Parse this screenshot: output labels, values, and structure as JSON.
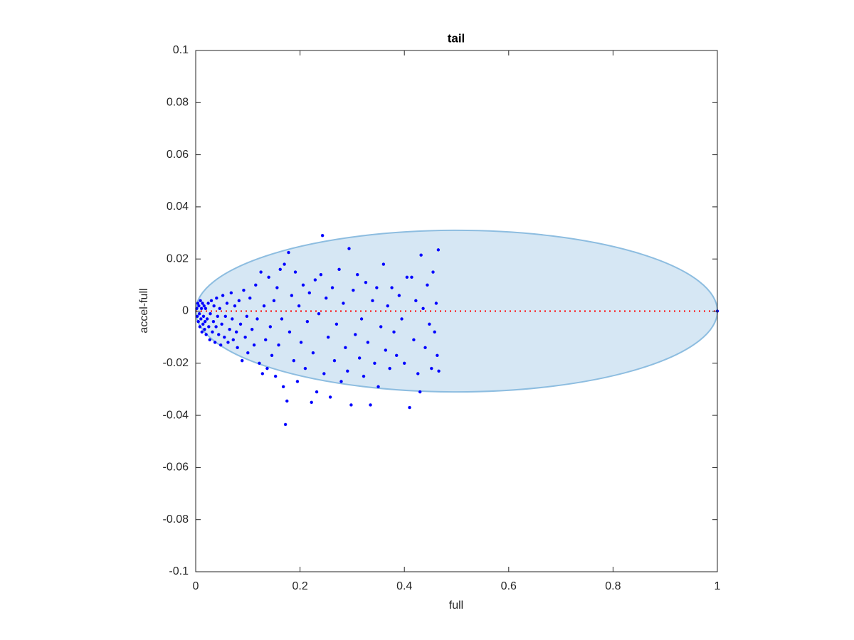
{
  "chart_data": {
    "type": "scatter",
    "title": "tail",
    "x_label": "full",
    "y_label": "accel-full",
    "xlim": [
      0,
      1
    ],
    "ylim": [
      -0.1,
      0.1
    ],
    "xticks": [
      0,
      0.2,
      0.4,
      0.6,
      0.8,
      1
    ],
    "yticks": [
      -0.1,
      -0.08,
      -0.06,
      -0.04,
      -0.02,
      0,
      0.02,
      0.04,
      0.06,
      0.08,
      0.1
    ],
    "grid": false,
    "color": "#0000ff",
    "ellipse": {
      "cx": 0.5,
      "cy": 0,
      "rx": 0.5,
      "ry": 0.031,
      "facecolor": "#d6e7f4",
      "edgecolor": "#8dbde0"
    },
    "reference_line": {
      "y": 0,
      "color": "#ff0000"
    },
    "x": [
      0.002,
      0.003,
      0.004,
      0.005,
      0.006,
      0.007,
      0.008,
      0.009,
      0.01,
      0.011,
      0.012,
      0.013,
      0.014,
      0.015,
      0.016,
      0.017,
      0.018,
      0.019,
      0.02,
      0.022,
      0.024,
      0.025,
      0.027,
      0.028,
      0.03,
      0.032,
      0.034,
      0.035,
      0.037,
      0.039,
      0.04,
      0.042,
      0.044,
      0.046,
      0.048,
      0.05,
      0.052,
      0.055,
      0.057,
      0.06,
      0.062,
      0.065,
      0.068,
      0.07,
      0.072,
      0.075,
      0.078,
      0.08,
      0.083,
      0.086,
      0.089,
      0.092,
      0.095,
      0.098,
      0.1,
      0.104,
      0.108,
      0.112,
      0.115,
      0.118,
      0.122,
      0.125,
      0.128,
      0.131,
      0.134,
      0.137,
      0.14,
      0.143,
      0.146,
      0.15,
      0.153,
      0.156,
      0.159,
      0.162,
      0.165,
      0.168,
      0.17,
      0.172,
      0.175,
      0.178,
      0.18,
      0.184,
      0.188,
      0.191,
      0.195,
      0.198,
      0.202,
      0.206,
      0.21,
      0.214,
      0.218,
      0.222,
      0.225,
      0.229,
      0.232,
      0.236,
      0.24,
      0.243,
      0.246,
      0.25,
      0.254,
      0.258,
      0.262,
      0.266,
      0.27,
      0.275,
      0.279,
      0.283,
      0.287,
      0.291,
      0.294,
      0.298,
      0.302,
      0.306,
      0.31,
      0.314,
      0.318,
      0.322,
      0.326,
      0.33,
      0.335,
      0.339,
      0.343,
      0.347,
      0.35,
      0.355,
      0.36,
      0.364,
      0.368,
      0.372,
      0.376,
      0.38,
      0.385,
      0.39,
      0.395,
      0.4,
      0.405,
      0.41,
      0.414,
      0.418,
      0.422,
      0.426,
      0.43,
      0.432,
      0.436,
      0.44,
      0.444,
      0.448,
      0.452,
      0.455,
      0.458,
      0.461,
      0.463,
      0.465,
      0.466,
      1.0
    ],
    "y": [
      0.001,
      -0.002,
      0.003,
      -0.004,
      0.002,
      -0.001,
      -0.006,
      0.004,
      -0.003,
      0.001,
      -0.008,
      0.003,
      -0.005,
      -0.002,
      0.002,
      -0.007,
      -0.004,
      0.001,
      -0.009,
      -0.003,
      0.003,
      -0.006,
      -0.011,
      -0.001,
      0.004,
      -0.008,
      -0.004,
      0.002,
      -0.012,
      -0.006,
      0.005,
      -0.002,
      -0.009,
      0.001,
      -0.013,
      -0.005,
      0.006,
      -0.01,
      -0.002,
      0.003,
      -0.012,
      -0.007,
      0.007,
      -0.003,
      -0.011,
      0.002,
      -0.008,
      -0.014,
      0.004,
      -0.005,
      -0.019,
      0.008,
      -0.01,
      -0.002,
      -0.016,
      0.005,
      -0.007,
      -0.013,
      0.01,
      -0.003,
      -0.02,
      0.015,
      -0.024,
      0.002,
      -0.011,
      -0.022,
      0.013,
      -0.006,
      -0.017,
      0.004,
      -0.025,
      0.009,
      -0.013,
      0.016,
      -0.003,
      -0.029,
      0.018,
      -0.0435,
      -0.0345,
      0.0225,
      -0.008,
      0.006,
      -0.019,
      0.015,
      -0.027,
      0.002,
      -0.012,
      0.01,
      -0.022,
      -0.004,
      0.007,
      -0.035,
      -0.016,
      0.012,
      -0.031,
      -0.001,
      0.014,
      0.029,
      -0.024,
      0.005,
      -0.01,
      -0.033,
      0.009,
      -0.019,
      -0.005,
      0.016,
      -0.027,
      0.003,
      -0.014,
      -0.023,
      0.024,
      -0.036,
      0.008,
      -0.009,
      0.014,
      -0.018,
      -0.003,
      -0.025,
      0.011,
      -0.012,
      -0.036,
      0.004,
      -0.02,
      0.009,
      -0.029,
      -0.006,
      0.018,
      -0.015,
      0.002,
      -0.022,
      0.009,
      -0.008,
      -0.017,
      0.006,
      -0.003,
      -0.02,
      0.013,
      -0.037,
      0.013,
      -0.011,
      0.004,
      -0.024,
      -0.031,
      0.0215,
      0.001,
      -0.014,
      0.01,
      -0.005,
      -0.022,
      0.015,
      -0.008,
      0.003,
      -0.017,
      0.0235,
      -0.023,
      0
    ]
  }
}
